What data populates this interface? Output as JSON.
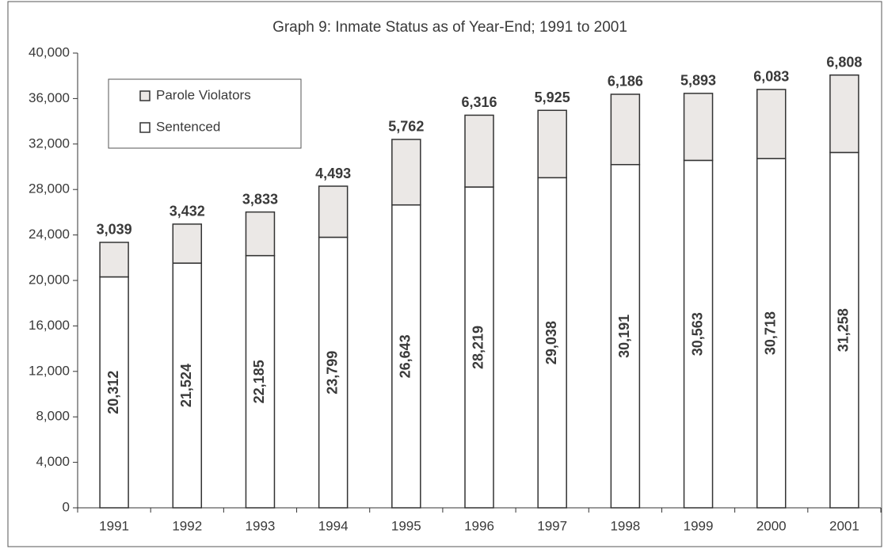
{
  "chart_data": {
    "type": "stacked-bar",
    "title": "Graph 9: Inmate Status as of Year-End; 1991 to 2001",
    "categories": [
      "1991",
      "1992",
      "1993",
      "1994",
      "1995",
      "1996",
      "1997",
      "1998",
      "1999",
      "2000",
      "2001"
    ],
    "series": [
      {
        "name": "Sentenced",
        "color": "#ffffff",
        "values": [
          20312,
          21524,
          22185,
          23799,
          26643,
          28219,
          29038,
          30191,
          30563,
          30718,
          31258
        ],
        "value_labels": [
          "20,312",
          "21,524",
          "22,185",
          "23,799",
          "26,643",
          "28,219",
          "29,038",
          "30,191",
          "30,563",
          "30,718",
          "31,258"
        ]
      },
      {
        "name": "Parole Violators",
        "color": "#ebe8e6",
        "values": [
          3039,
          3432,
          3833,
          4493,
          5762,
          6316,
          5925,
          6186,
          5893,
          6083,
          6808
        ],
        "value_labels": [
          "3,039",
          "3,432",
          "3,833",
          "4,493",
          "5,762",
          "6,316",
          "5,925",
          "6,186",
          "5,893",
          "6,083",
          "6,808"
        ]
      }
    ],
    "ylim": [
      0,
      40000
    ],
    "yticks": [
      0,
      {
        "value": 4000,
        "label": "4,000"
      },
      {
        "value": 8000,
        "label": "8,000"
      },
      {
        "value": 12000,
        "label": "12,000"
      },
      {
        "value": 16000,
        "label": "16,000"
      },
      {
        "value": 20000,
        "label": "20,000"
      },
      {
        "value": 24000,
        "label": "24,000"
      },
      {
        "value": 28000,
        "label": "28,000"
      },
      {
        "value": 32000,
        "label": "32,000"
      },
      {
        "value": 36000,
        "label": "36,000"
      },
      {
        "value": 40000,
        "label": "40,000"
      }
    ],
    "legend": "upper left"
  }
}
